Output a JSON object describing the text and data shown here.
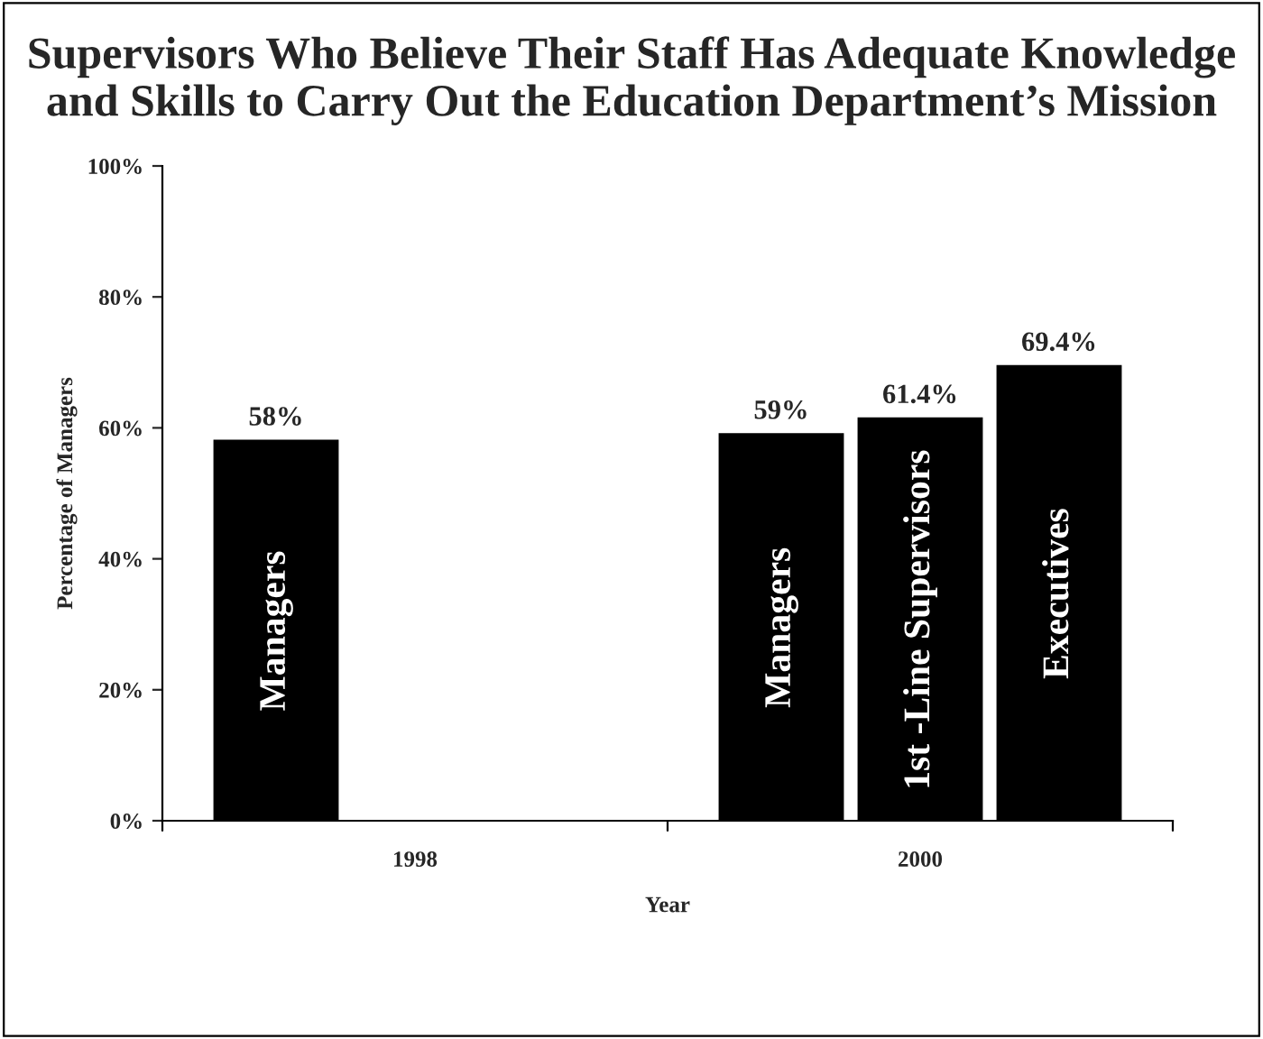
{
  "chart_data": {
    "type": "bar",
    "title": "Supervisors Who Believe Their Staff Has Adequate Knowledge and Skills to Carry Out the Education Department’s Mission",
    "xlabel": "Year",
    "ylabel": "Percentage of Managers",
    "categories": [
      "1998",
      "2000"
    ],
    "series": [
      {
        "name": "Managers",
        "color": "#000000",
        "values": [
          58,
          59
        ],
        "value_labels": [
          "58%",
          "59%"
        ]
      },
      {
        "name": "1st -Line Supervisors",
        "color": "#000000",
        "values": [
          null,
          61.4
        ],
        "value_labels": [
          null,
          "61.4%"
        ]
      },
      {
        "name": "Executives",
        "color": "#000000",
        "values": [
          null,
          69.4
        ],
        "value_labels": [
          null,
          "69.4%"
        ]
      }
    ],
    "ylim": [
      0,
      100
    ],
    "yticks": [
      {
        "value": 0,
        "label": "0%"
      },
      {
        "value": 20,
        "label": "20%"
      },
      {
        "value": 40,
        "label": "40%"
      },
      {
        "value": 60,
        "label": "60%"
      },
      {
        "value": 80,
        "label": "80%"
      },
      {
        "value": 100,
        "label": "100%"
      }
    ],
    "grid": false,
    "legend": false
  }
}
